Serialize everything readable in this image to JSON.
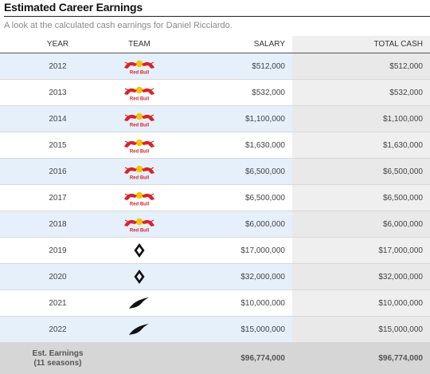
{
  "header": {
    "title": "Estimated Career Earnings",
    "subtitle": "A look at the calculated cash earnings for Daniel Ricciardo."
  },
  "table": {
    "columns": [
      "YEAR",
      "TEAM",
      "SALARY",
      "TOTAL CASH"
    ],
    "rows": [
      {
        "year": "2012",
        "team_logo": "red-bull-logo",
        "salary": "$512,000",
        "total": "$512,000"
      },
      {
        "year": "2013",
        "team_logo": "red-bull-logo",
        "salary": "$532,000",
        "total": "$532,000"
      },
      {
        "year": "2014",
        "team_logo": "red-bull-logo",
        "salary": "$1,100,000",
        "total": "$1,100,000"
      },
      {
        "year": "2015",
        "team_logo": "red-bull-logo",
        "salary": "$1,630,000",
        "total": "$1,630,000"
      },
      {
        "year": "2016",
        "team_logo": "red-bull-logo",
        "salary": "$6,500,000",
        "total": "$6,500,000"
      },
      {
        "year": "2017",
        "team_logo": "red-bull-logo",
        "salary": "$6,500,000",
        "total": "$6,500,000"
      },
      {
        "year": "2018",
        "team_logo": "red-bull-logo",
        "salary": "$6,000,000",
        "total": "$6,000,000"
      },
      {
        "year": "2019",
        "team_logo": "renault-logo",
        "salary": "$17,000,000",
        "total": "$17,000,000"
      },
      {
        "year": "2020",
        "team_logo": "renault-logo",
        "salary": "$32,000,000",
        "total": "$32,000,000"
      },
      {
        "year": "2021",
        "team_logo": "mclaren-logo",
        "salary": "$10,000,000",
        "total": "$10,000,000"
      },
      {
        "year": "2022",
        "team_logo": "mclaren-logo",
        "salary": "$15,000,000",
        "total": "$15,000,000"
      }
    ],
    "footer": {
      "label_line1": "Est. Earnings",
      "label_line2": "(11 seasons)",
      "salary": "$96,774,000",
      "total": "$96,774,000"
    }
  },
  "logo_text": {
    "red_bull": "Red Bull"
  },
  "colors": {
    "alt_row": "#e6f0fb",
    "total_column": "#efefef",
    "footer": "#d6d6d6",
    "red_bull_red": "#d8232a",
    "red_bull_yellow": "#f5c400"
  }
}
